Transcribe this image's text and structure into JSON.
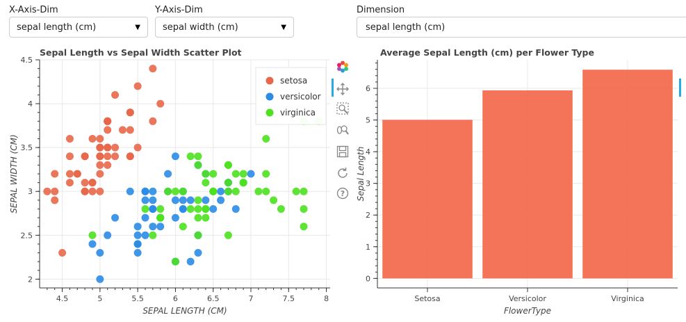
{
  "controls": {
    "x_label": "X-Axis-Dim",
    "x_value": "sepal length (cm)",
    "y_label": "Y-Axis-Dim",
    "y_value": "sepal width (cm)",
    "dim_label": "Dimension",
    "dim_value": "sepal length (cm)"
  },
  "scatter": {
    "title": "Sepal Length vs Sepal Width Scatter Plot",
    "xlabel": "SEPAL LENGTH (CM)",
    "ylabel": "SEPAL WIDTH (CM)"
  },
  "barchart": {
    "title": "Average Sepal Length (cm) per Flower Type",
    "xlabel": "FlowerType",
    "ylabel": "Sepal Length"
  },
  "toolbar": [
    {
      "name": "bokeh-logo-icon"
    },
    {
      "name": "pan-tool-icon"
    },
    {
      "name": "box-zoom-tool-icon"
    },
    {
      "name": "wheel-zoom-tool-icon"
    },
    {
      "name": "save-tool-icon"
    },
    {
      "name": "reset-tool-icon"
    },
    {
      "name": "help-tool-icon"
    }
  ],
  "colors": {
    "setosa": "#e8674a",
    "versicolor": "#2b8ce6",
    "virginica": "#4de11f",
    "bar": "#f26d4f"
  },
  "chart_data": [
    {
      "type": "scatter",
      "title": "Sepal Length vs Sepal Width Scatter Plot",
      "xlabel": "SEPAL LENGTH (CM)",
      "ylabel": "SEPAL WIDTH (CM)",
      "xlim": [
        4.2,
        8.05
      ],
      "ylim": [
        1.9,
        4.5
      ],
      "xticks": [
        "4.5",
        "5",
        "5.5",
        "6",
        "6.5",
        "7",
        "7.5",
        "8"
      ],
      "yticks": [
        "2",
        "2.5",
        "3",
        "3.5",
        "4",
        "4.5"
      ],
      "grid": true,
      "legend_position": "top-right",
      "series": [
        {
          "name": "setosa",
          "x": [
            5.1,
            4.9,
            4.7,
            4.6,
            5.0,
            5.4,
            4.6,
            5.0,
            4.4,
            4.9,
            5.4,
            4.8,
            4.8,
            4.3,
            5.8,
            5.7,
            5.4,
            5.1,
            5.7,
            5.1,
            5.4,
            5.1,
            4.6,
            5.1,
            4.8,
            5.0,
            5.0,
            5.2,
            5.2,
            4.7,
            4.8,
            5.4,
            5.2,
            5.5,
            4.9,
            5.0,
            5.5,
            4.9,
            4.4,
            5.1,
            5.0,
            4.5,
            4.4,
            5.0,
            5.1,
            4.8,
            5.1,
            4.6,
            5.3,
            5.0
          ],
          "y": [
            3.5,
            3.0,
            3.2,
            3.1,
            3.6,
            3.9,
            3.4,
            3.4,
            2.9,
            3.1,
            3.7,
            3.4,
            3.0,
            3.0,
            4.0,
            4.4,
            3.9,
            3.5,
            3.8,
            3.8,
            3.4,
            3.7,
            3.6,
            3.3,
            3.4,
            3.0,
            3.4,
            3.5,
            3.4,
            3.2,
            3.1,
            3.4,
            4.1,
            4.2,
            3.1,
            3.2,
            3.5,
            3.6,
            3.0,
            3.4,
            3.5,
            2.3,
            3.2,
            3.5,
            3.8,
            3.0,
            3.8,
            3.2,
            3.7,
            3.3
          ]
        },
        {
          "name": "versicolor",
          "x": [
            7.0,
            6.4,
            6.9,
            5.5,
            6.5,
            5.7,
            6.3,
            4.9,
            6.6,
            5.2,
            5.0,
            5.9,
            6.0,
            6.1,
            5.6,
            6.7,
            5.6,
            5.8,
            6.2,
            5.6,
            5.9,
            6.1,
            6.3,
            6.1,
            6.4,
            6.6,
            6.8,
            6.7,
            6.0,
            5.7,
            5.5,
            5.5,
            5.8,
            6.0,
            5.4,
            6.0,
            6.7,
            6.3,
            5.6,
            5.5,
            5.5,
            6.1,
            5.8,
            5.0,
            5.6,
            5.7,
            5.7,
            6.2,
            5.1,
            5.7
          ],
          "y": [
            3.2,
            3.2,
            3.1,
            2.3,
            2.8,
            2.8,
            3.3,
            2.4,
            2.9,
            2.7,
            2.0,
            3.0,
            2.2,
            2.9,
            2.9,
            3.1,
            3.0,
            2.7,
            2.2,
            2.5,
            3.2,
            2.8,
            2.5,
            2.8,
            2.9,
            3.0,
            2.8,
            3.0,
            2.9,
            2.6,
            2.4,
            2.4,
            2.7,
            2.7,
            3.0,
            3.4,
            3.1,
            2.3,
            3.0,
            2.5,
            2.6,
            3.0,
            2.6,
            2.3,
            2.7,
            3.0,
            2.9,
            2.9,
            2.5,
            2.8
          ]
        },
        {
          "name": "virginica",
          "x": [
            6.3,
            5.8,
            7.1,
            6.3,
            6.5,
            7.6,
            4.9,
            7.3,
            6.7,
            7.2,
            6.5,
            6.4,
            6.8,
            5.7,
            5.8,
            6.4,
            6.5,
            7.7,
            7.7,
            6.0,
            6.9,
            5.6,
            7.7,
            6.3,
            6.7,
            7.2,
            6.2,
            6.1,
            6.4,
            7.2,
            7.4,
            7.9,
            6.4,
            6.3,
            6.1,
            7.7,
            6.3,
            6.4,
            6.0,
            6.9,
            6.7,
            6.9,
            5.8,
            6.8,
            6.7,
            6.7,
            6.3,
            6.5,
            6.2,
            5.9
          ],
          "y": [
            3.3,
            2.7,
            3.0,
            2.9,
            3.0,
            3.0,
            2.5,
            2.9,
            2.5,
            3.6,
            3.2,
            2.7,
            3.0,
            2.5,
            2.8,
            3.2,
            3.0,
            3.8,
            2.6,
            2.2,
            3.2,
            2.8,
            2.8,
            2.7,
            3.3,
            3.2,
            2.8,
            3.0,
            2.8,
            3.0,
            2.8,
            3.8,
            2.8,
            2.8,
            2.6,
            3.0,
            3.4,
            3.1,
            3.0,
            3.1,
            3.1,
            3.1,
            2.7,
            3.2,
            3.3,
            3.0,
            2.5,
            3.0,
            3.4,
            3.0
          ]
        }
      ]
    },
    {
      "type": "bar",
      "title": "Average Sepal Length (cm) per Flower Type",
      "xlabel": "FlowerType",
      "ylabel": "Sepal Length",
      "categories": [
        "Setosa",
        "Versicolor",
        "Virginica"
      ],
      "values": [
        5.006,
        5.936,
        6.588
      ],
      "ylim": [
        -0.3,
        6.9
      ],
      "yticks": [
        "0",
        "1",
        "2",
        "3",
        "4",
        "5",
        "6"
      ],
      "grid": true
    }
  ]
}
